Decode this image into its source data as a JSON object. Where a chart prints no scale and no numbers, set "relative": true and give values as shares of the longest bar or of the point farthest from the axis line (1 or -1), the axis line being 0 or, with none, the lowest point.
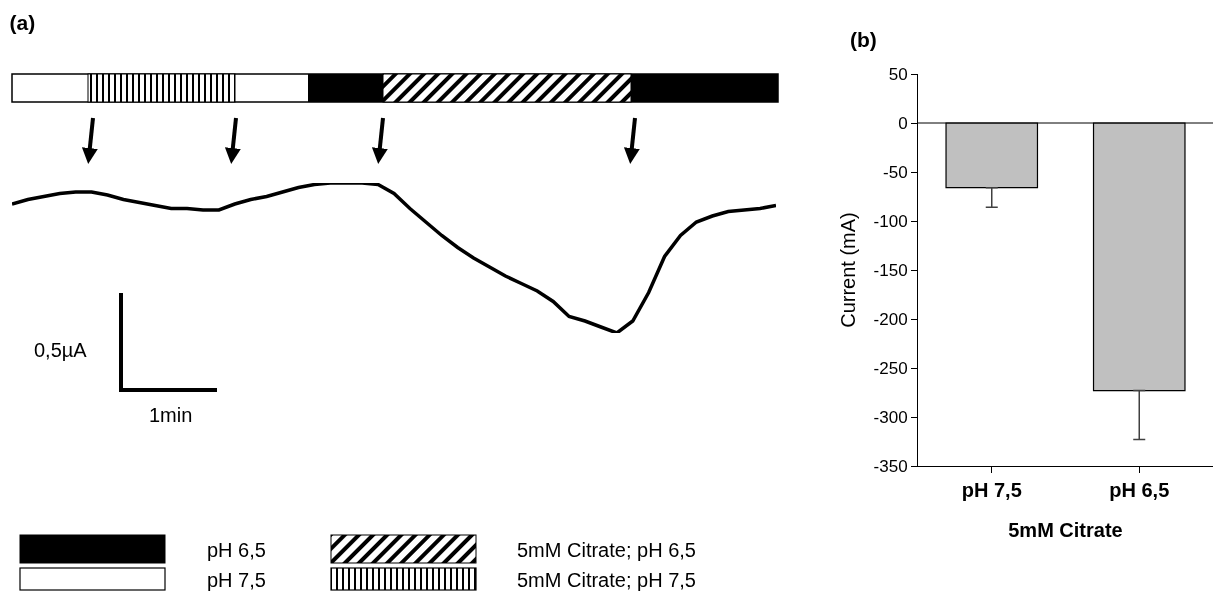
{
  "chart_data": [
    {
      "type": "line",
      "title": "(a)",
      "relative": true,
      "color": "#000000",
      "categories": [
        null,
        null,
        null,
        null,
        null,
        null,
        null,
        null,
        null,
        null,
        null,
        null,
        null,
        null,
        null,
        null,
        null,
        null,
        null,
        null,
        null,
        null,
        null,
        null,
        null,
        null,
        null,
        null,
        null,
        null,
        null,
        null,
        null,
        null,
        null,
        null,
        null,
        null,
        null,
        null,
        null,
        null,
        null,
        null,
        null,
        null,
        null,
        null,
        null
      ],
      "values": [
        0.86,
        0.89,
        0.91,
        0.93,
        0.94,
        0.94,
        0.92,
        0.89,
        0.87,
        0.85,
        0.83,
        0.83,
        0.82,
        0.82,
        0.86,
        0.89,
        0.91,
        0.94,
        0.97,
        0.99,
        1.0,
        1.0,
        1.0,
        0.99,
        0.93,
        0.83,
        0.74,
        0.65,
        0.57,
        0.5,
        0.44,
        0.38,
        0.33,
        0.28,
        0.21,
        0.11,
        0.08,
        0.04,
        0.0,
        0.08,
        0.27,
        0.51,
        0.65,
        0.74,
        0.78,
        0.81,
        0.82,
        0.83,
        0.85
      ],
      "annotations": [
        "0,5µA",
        "1min",
        "pH 6,5",
        "5mM Citrate; pH 6,5",
        "pH 7,5",
        "5mM Citrate; pH 7,5"
      ]
    },
    {
      "type": "bar",
      "title": "(b)",
      "categories": [
        "pH 7,5",
        "pH 6,5"
      ],
      "values": [
        -66,
        -273
      ],
      "errors": [
        [
          -86,
          -66
        ],
        [
          -323,
          -273
        ]
      ],
      "color": "#c0c0c0",
      "xlabel": "5mM Citrate",
      "ylabel": "Current (mA)",
      "ylim": [
        -350,
        50
      ],
      "yticks": [
        -350,
        -300,
        -250,
        -200,
        -150,
        -100,
        -50,
        0,
        50
      ],
      "grid": false,
      "ref_lines": [
        {
          "axis": "y",
          "value": 0
        }
      ]
    }
  ]
}
